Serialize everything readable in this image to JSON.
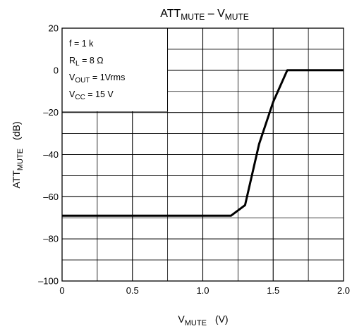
{
  "chart_data": {
    "type": "line",
    "title": {
      "main": "ATT",
      "sub1": "MUTE",
      "sep": " – V",
      "sub2": "MUTE"
    },
    "xlabel": {
      "main": "V",
      "sub": "MUTE",
      "unit": "(V)"
    },
    "ylabel": {
      "main": "ATT",
      "sub": "MUTE",
      "unit": "(dB)"
    },
    "xlim": [
      0,
      2.0
    ],
    "ylim": [
      -100,
      20
    ],
    "grid": true,
    "x_major_ticks": [
      0,
      0.5,
      1.0,
      1.5,
      2.0
    ],
    "x_tick_labels": [
      "0",
      "0.5",
      "1.0",
      "1.5",
      "2.0"
    ],
    "x_minor_step": 0.25,
    "y_major_ticks": [
      20,
      0,
      -20,
      -40,
      -60,
      -80,
      -100
    ],
    "y_tick_labels": [
      "20",
      "0",
      "–20",
      "–40",
      "–60",
      "–80",
      "–100"
    ],
    "y_minor_step": 10,
    "conditions": [
      {
        "main": "f = 1 k",
        "sub": "",
        "rest": ""
      },
      {
        "main": "R",
        "sub": "L",
        "rest": " = 8 Ω"
      },
      {
        "main": "V",
        "sub": "OUT",
        "rest": " = 1Vrms"
      },
      {
        "main": "V",
        "sub": "CC",
        "rest": " = 15 V"
      }
    ],
    "series": [
      {
        "x": [
          0,
          1.2,
          1.3,
          1.4,
          1.5,
          1.6,
          2.0
        ],
        "y": [
          -69,
          -69,
          -64,
          -35,
          -15,
          0,
          0
        ]
      }
    ]
  }
}
